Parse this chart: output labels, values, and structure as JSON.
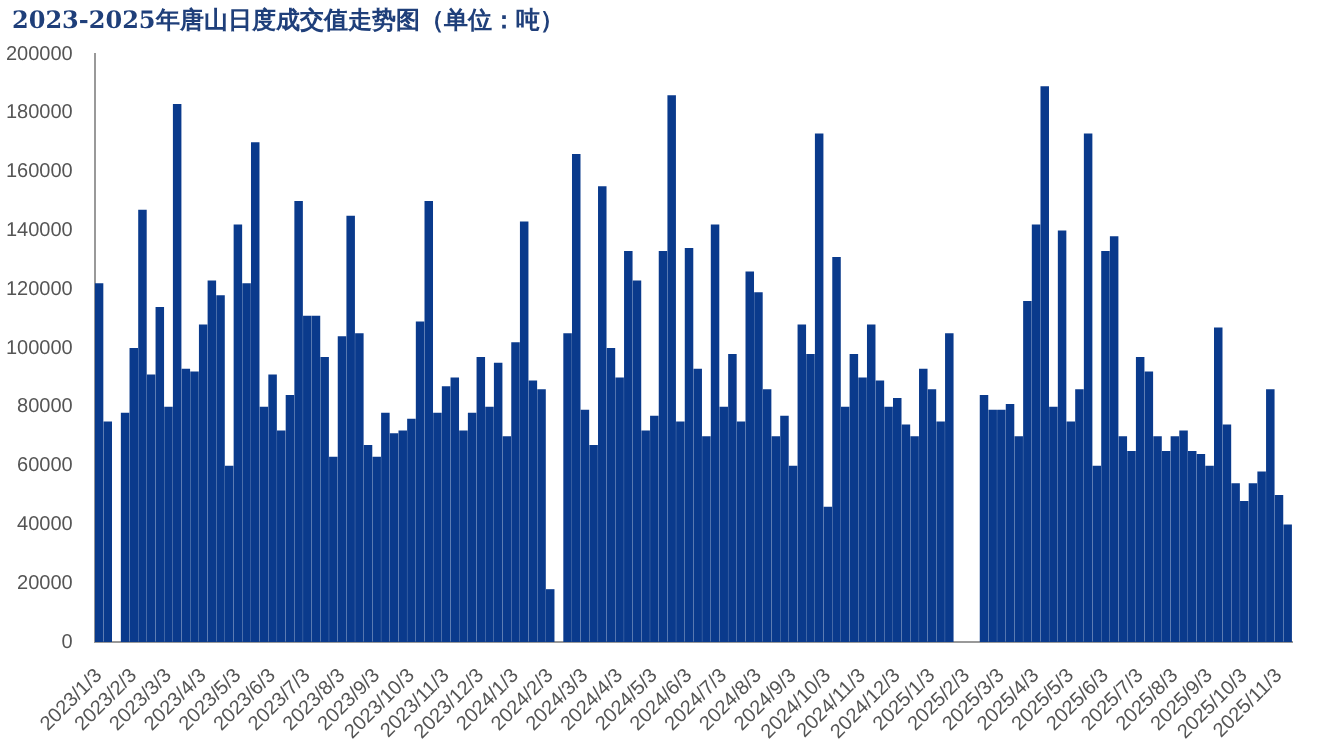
{
  "chart_data": {
    "type": "bar",
    "title": "2023-2025年唐山日度成交值走势图（单位：吨）",
    "categories": [
      "2023/1/3",
      null,
      null,
      null,
      "2023/2/3",
      null,
      null,
      null,
      "2023/3/3",
      null,
      null,
      null,
      "2023/4/3",
      null,
      null,
      null,
      "2023/5/3",
      null,
      null,
      null,
      "2023/6/3",
      null,
      null,
      null,
      "2023/7/3",
      null,
      null,
      null,
      "2023/8/3",
      null,
      null,
      null,
      "2023/9/3",
      null,
      null,
      null,
      "2023/10/3",
      null,
      null,
      null,
      "2023/11/3",
      null,
      null,
      null,
      "2023/12/3",
      null,
      null,
      null,
      "2024/1/3",
      null,
      null,
      null,
      "2024/2/3",
      null,
      null,
      null,
      "2024/3/3",
      null,
      null,
      null,
      "2024/4/3",
      null,
      null,
      null,
      "2024/5/3",
      null,
      null,
      null,
      "2024/6/3",
      null,
      null,
      null,
      "2024/7/3",
      null,
      null,
      null,
      "2024/8/3",
      null,
      null,
      null,
      "2024/9/3",
      null,
      null,
      null,
      "2024/10/3",
      null,
      null,
      null,
      "2024/11/3",
      null,
      null,
      null,
      "2024/12/3",
      null,
      null,
      null,
      "2025/1/3",
      null,
      null,
      null,
      "2025/2/3",
      null,
      null,
      null,
      "2025/3/3",
      null,
      null,
      null,
      "2025/4/3",
      null,
      null,
      null,
      "2025/5/3",
      null,
      null,
      null,
      "2025/6/3",
      null,
      null,
      null,
      "2025/7/3",
      null,
      null,
      null,
      "2025/8/3",
      null,
      null,
      null,
      "2025/9/3",
      null,
      null,
      null,
      "2025/10/3",
      null,
      null,
      null,
      "2025/11/3",
      null
    ],
    "values": [
      122000,
      75000,
      null,
      78000,
      100000,
      147000,
      91000,
      114000,
      80000,
      183000,
      93000,
      92000,
      108000,
      123000,
      118000,
      60000,
      142000,
      122000,
      170000,
      80000,
      91000,
      72000,
      84000,
      150000,
      111000,
      111000,
      97000,
      63000,
      104000,
      145000,
      105000,
      67000,
      63000,
      78000,
      71000,
      72000,
      76000,
      109000,
      150000,
      78000,
      87000,
      90000,
      72000,
      78000,
      97000,
      80000,
      95000,
      70000,
      102000,
      143000,
      89000,
      86000,
      18000,
      null,
      105000,
      166000,
      79000,
      67000,
      155000,
      100000,
      90000,
      133000,
      123000,
      72000,
      77000,
      133000,
      186000,
      75000,
      134000,
      93000,
      70000,
      142000,
      80000,
      98000,
      75000,
      126000,
      119000,
      86000,
      70000,
      77000,
      60000,
      108000,
      98000,
      173000,
      46000,
      131000,
      80000,
      98000,
      90000,
      108000,
      89000,
      80000,
      83000,
      74000,
      70000,
      93000,
      86000,
      75000,
      105000,
      null,
      null,
      null,
      84000,
      79000,
      79000,
      81000,
      70000,
      116000,
      142000,
      189000,
      80000,
      140000,
      75000,
      86000,
      173000,
      60000,
      133000,
      138000,
      70000,
      65000,
      97000,
      92000,
      70000,
      65000,
      70000,
      72000,
      65000,
      64000,
      60000,
      107000,
      74000,
      54000,
      48000,
      54000,
      58000,
      86000,
      50000,
      40000
    ],
    "color": "#0a3a8c",
    "ylim": [
      0,
      200000
    ],
    "yticks": [
      0,
      20000,
      40000,
      60000,
      80000,
      100000,
      120000,
      140000,
      160000,
      180000,
      200000
    ],
    "grid": false,
    "legend": false
  }
}
